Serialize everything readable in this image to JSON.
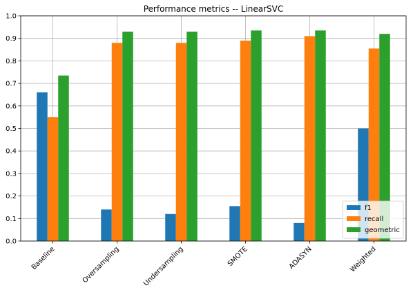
{
  "chart_data": {
    "type": "bar",
    "title": "Performance metrics -- LinearSVC",
    "xlabel": "",
    "ylabel": "",
    "categories": [
      "Baseline",
      "Oversampling",
      "Undersampling",
      "SMOTE",
      "ADASYN",
      "Weighted"
    ],
    "series": [
      {
        "name": "f1",
        "color": "#1f77b4",
        "values": [
          0.66,
          0.14,
          0.12,
          0.155,
          0.08,
          0.5
        ]
      },
      {
        "name": "recall",
        "color": "#ff7f0e",
        "values": [
          0.55,
          0.88,
          0.88,
          0.89,
          0.91,
          0.855
        ]
      },
      {
        "name": "geometric",
        "color": "#2ca02c",
        "values": [
          0.735,
          0.93,
          0.93,
          0.935,
          0.935,
          0.92
        ]
      }
    ],
    "ylim": [
      0,
      1.0
    ],
    "yticks": [
      "0.0",
      "0.1",
      "0.2",
      "0.3",
      "0.4",
      "0.5",
      "0.6",
      "0.7",
      "0.8",
      "0.9",
      "1.0"
    ],
    "grid": true,
    "legend_position": "bottom-right"
  }
}
